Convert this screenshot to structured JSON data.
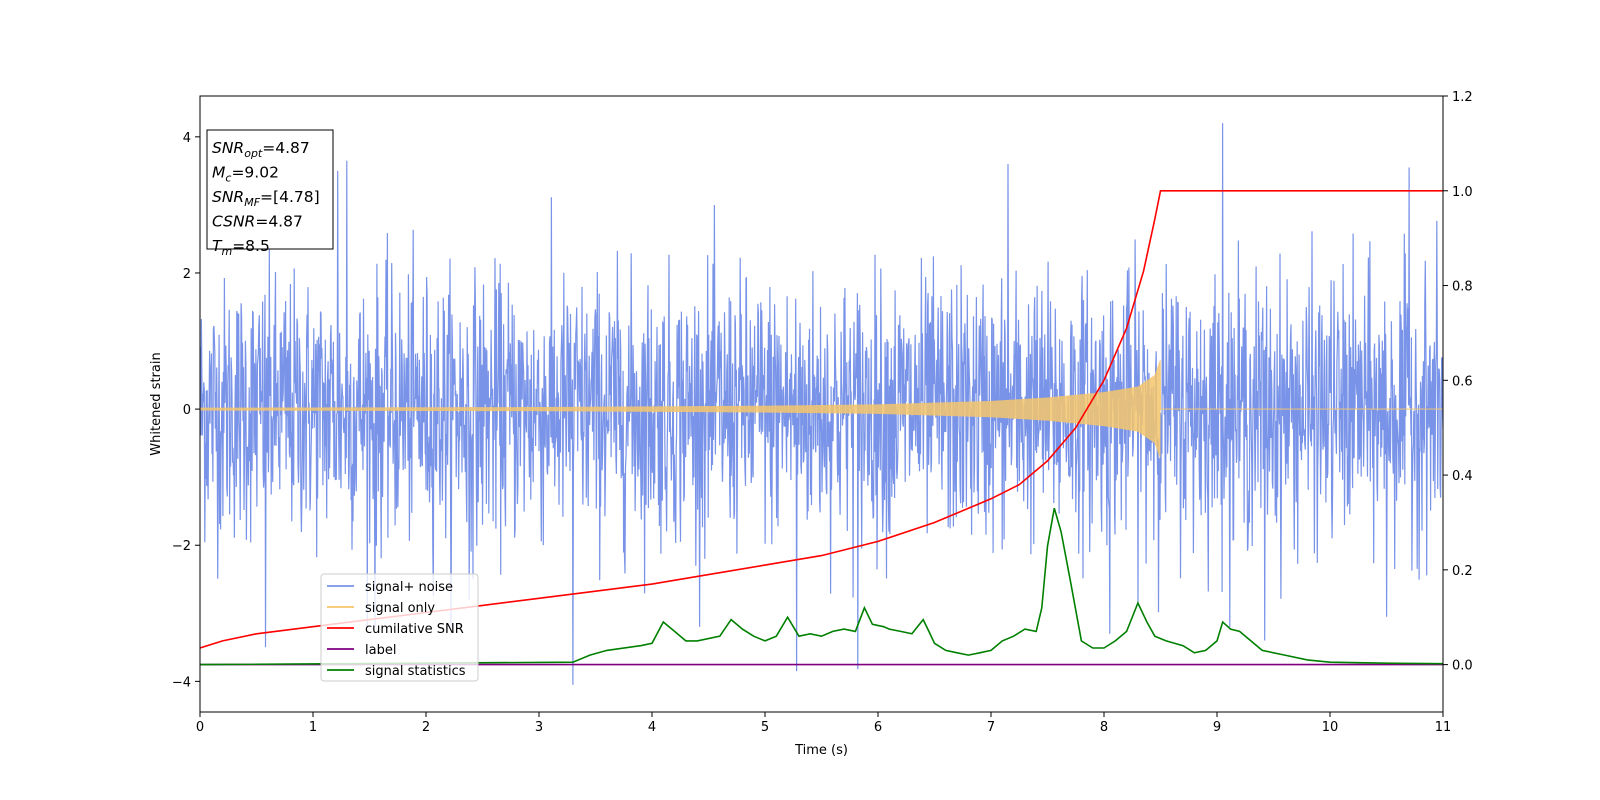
{
  "chart_data": {
    "type": "line",
    "xlabel": "Time (s)",
    "ylabel": "Whitened strain",
    "xlim": [
      0,
      11
    ],
    "ylim": [
      -4.45,
      4.6
    ],
    "y2lim": [
      -0.1,
      1.2
    ],
    "x_ticks": [
      "0",
      "1",
      "2",
      "3",
      "4",
      "5",
      "6",
      "7",
      "8",
      "9",
      "10",
      "11"
    ],
    "y_ticks": [
      "4",
      "2",
      "0",
      "−2",
      "−4"
    ],
    "y2_ticks": [
      "1.2",
      "1.0",
      "0.8",
      "0.6",
      "0.4",
      "0.2",
      "0.0"
    ],
    "legend_position": "lower-left",
    "grid": false,
    "series": [
      {
        "name": "signal+ noise",
        "color": "#7893e8",
        "axis": "left",
        "description_values": "noise envelope roughly between -1.9 and 2.1, spikes reaching about 4.2 near t=9.05 and -4.05 near t=3.3",
        "spike_samples": [
          [
            0.58,
            -3.5
          ],
          [
            1.22,
            3.5
          ],
          [
            1.3,
            3.65
          ],
          [
            1.55,
            -3.2
          ],
          [
            2.38,
            -2.8
          ],
          [
            3.3,
            -4.05
          ],
          [
            5.28,
            -3.85
          ],
          [
            5.82,
            -3.82
          ],
          [
            7.15,
            3.6
          ],
          [
            8.05,
            -3.3
          ],
          [
            9.05,
            4.2
          ],
          [
            9.42,
            -3.4
          ],
          [
            10.5,
            -3.05
          ],
          [
            10.7,
            3.55
          ]
        ]
      },
      {
        "name": "signal only",
        "color": "#f5c66c",
        "axis": "left",
        "envelope": [
          [
            0,
            0.02
          ],
          [
            3,
            0.03
          ],
          [
            5,
            0.05
          ],
          [
            6,
            0.07
          ],
          [
            7,
            0.12
          ],
          [
            7.5,
            0.17
          ],
          [
            8,
            0.25
          ],
          [
            8.3,
            0.33
          ],
          [
            8.45,
            0.5
          ],
          [
            8.5,
            0.73
          ]
        ],
        "merger_time": 8.5
      },
      {
        "name": "cumilative SNR",
        "color": "#ff0000",
        "axis": "right",
        "x": [
          0,
          0.2,
          0.5,
          1,
          1.5,
          2,
          2.5,
          3,
          3.5,
          4,
          4.5,
          5,
          5.5,
          6,
          6.5,
          7,
          7.25,
          7.5,
          7.75,
          8,
          8.2,
          8.35,
          8.45,
          8.5,
          11
        ],
        "y": [
          0.035,
          0.05,
          0.065,
          0.08,
          0.095,
          0.11,
          0.125,
          0.14,
          0.155,
          0.17,
          0.19,
          0.21,
          0.23,
          0.26,
          0.3,
          0.35,
          0.38,
          0.43,
          0.5,
          0.6,
          0.71,
          0.83,
          0.94,
          1.0,
          1.0
        ]
      },
      {
        "name": "label",
        "color": "#800080",
        "axis": "right",
        "x": [
          0,
          11
        ],
        "y": [
          0,
          0
        ]
      },
      {
        "name": "signal statistics",
        "color": "#008000",
        "axis": "right",
        "x": [
          0,
          3.3,
          3.45,
          3.6,
          3.9,
          4.0,
          4.1,
          4.2,
          4.3,
          4.4,
          4.6,
          4.7,
          4.8,
          4.9,
          5.0,
          5.1,
          5.2,
          5.25,
          5.3,
          5.4,
          5.5,
          5.6,
          5.7,
          5.8,
          5.88,
          5.95,
          6.05,
          6.1,
          6.2,
          6.3,
          6.4,
          6.45,
          6.5,
          6.6,
          6.7,
          6.8,
          6.9,
          7.0,
          7.1,
          7.2,
          7.3,
          7.4,
          7.45,
          7.5,
          7.56,
          7.62,
          7.7,
          7.8,
          7.9,
          8.0,
          8.1,
          8.2,
          8.3,
          8.38,
          8.45,
          8.55,
          8.7,
          8.8,
          8.9,
          9.0,
          9.05,
          9.12,
          9.2,
          9.3,
          9.4,
          9.6,
          9.8,
          10.0,
          10.5,
          11
        ],
        "y": [
          0,
          0.005,
          0.02,
          0.03,
          0.04,
          0.045,
          0.09,
          0.07,
          0.05,
          0.05,
          0.06,
          0.095,
          0.075,
          0.06,
          0.05,
          0.06,
          0.1,
          0.08,
          0.06,
          0.065,
          0.06,
          0.07,
          0.075,
          0.07,
          0.12,
          0.085,
          0.08,
          0.075,
          0.07,
          0.065,
          0.095,
          0.07,
          0.045,
          0.03,
          0.025,
          0.02,
          0.025,
          0.03,
          0.05,
          0.06,
          0.075,
          0.07,
          0.12,
          0.25,
          0.33,
          0.28,
          0.18,
          0.05,
          0.035,
          0.035,
          0.05,
          0.07,
          0.13,
          0.09,
          0.06,
          0.05,
          0.04,
          0.025,
          0.03,
          0.05,
          0.09,
          0.075,
          0.07,
          0.05,
          0.03,
          0.02,
          0.01,
          0.005,
          0.003,
          0.002
        ]
      }
    ],
    "annotation_box": {
      "lines": [
        {
          "sym": "SNR",
          "sub": "opt",
          "val": "=4.87"
        },
        {
          "sym": "M",
          "sub": "c",
          "val": "=9.02"
        },
        {
          "sym": "SNR",
          "sub": "MF",
          "val": "=[4.78]"
        },
        {
          "sym": "CSNR",
          "sub": "",
          "val": "=4.87"
        },
        {
          "sym": "T",
          "sub": "m",
          "val": "=8.5"
        }
      ]
    }
  }
}
